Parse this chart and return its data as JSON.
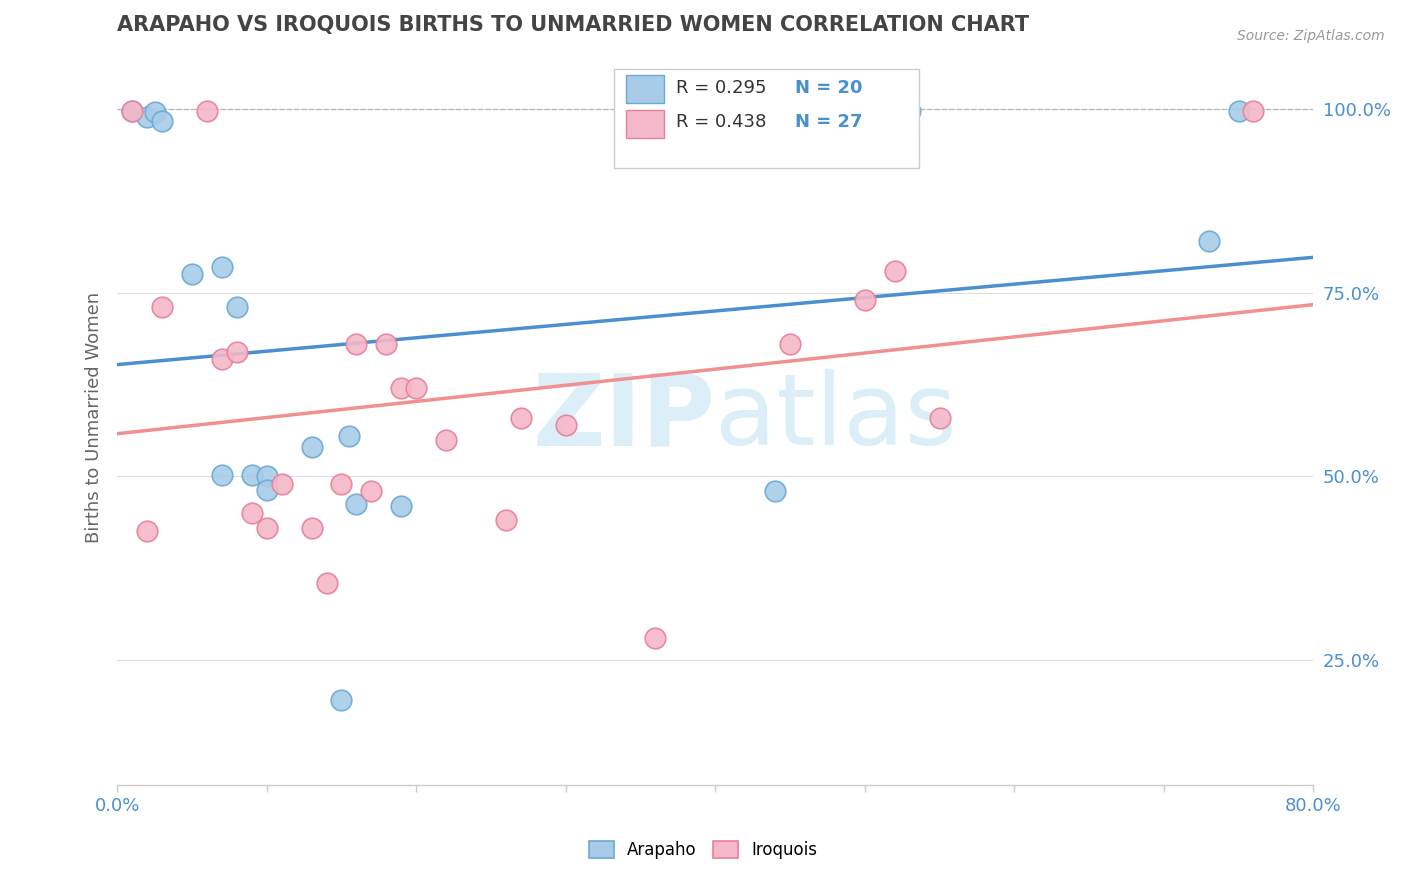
{
  "title": "ARAPAHO VS IROQUOIS BIRTHS TO UNMARRIED WOMEN CORRELATION CHART",
  "source_text": "Source: ZipAtlas.com",
  "ylabel": "Births to Unmarried Women",
  "xlim": [
    0.0,
    0.8
  ],
  "ylim": [
    0.08,
    1.08
  ],
  "xticks": [
    0.0,
    0.1,
    0.2,
    0.3,
    0.4,
    0.5,
    0.6,
    0.7,
    0.8
  ],
  "xticklabels": [
    "0.0%",
    "",
    "",
    "",
    "",
    "",
    "",
    "",
    "80.0%"
  ],
  "ytick_positions": [
    0.25,
    0.5,
    0.75,
    1.0
  ],
  "ytick_labels": [
    "25.0%",
    "50.0%",
    "75.0%",
    "100.0%"
  ],
  "arapaho_color": "#a8cce8",
  "arapaho_edge": "#6aaad4",
  "iroquois_color": "#f5b8c8",
  "iroquois_edge": "#e88099",
  "arapaho_line_color": "#4a90d0",
  "iroquois_line_color": "#f09090",
  "legend_R_arapaho": "R = 0.295",
  "legend_N_arapaho": "N = 20",
  "legend_R_iroquois": "R = 0.438",
  "legend_N_iroquois": "N = 27",
  "arapaho_x": [
    0.01,
    0.02,
    0.025,
    0.03,
    0.05,
    0.07,
    0.07,
    0.08,
    0.09,
    0.1,
    0.1,
    0.13,
    0.15,
    0.155,
    0.16,
    0.19,
    0.44,
    0.53,
    0.73,
    0.75
  ],
  "arapaho_y": [
    0.998,
    0.99,
    0.996,
    0.984,
    0.775,
    0.785,
    0.502,
    0.73,
    0.502,
    0.5,
    0.482,
    0.54,
    0.195,
    0.555,
    0.462,
    0.46,
    0.48,
    0.998,
    0.82,
    0.998
  ],
  "iroquois_x": [
    0.01,
    0.02,
    0.03,
    0.06,
    0.07,
    0.08,
    0.09,
    0.1,
    0.11,
    0.13,
    0.14,
    0.15,
    0.16,
    0.17,
    0.18,
    0.19,
    0.2,
    0.22,
    0.26,
    0.27,
    0.3,
    0.36,
    0.45,
    0.5,
    0.52,
    0.55,
    0.76
  ],
  "iroquois_y": [
    0.998,
    0.425,
    0.73,
    0.998,
    0.66,
    0.67,
    0.45,
    0.43,
    0.49,
    0.43,
    0.355,
    0.49,
    0.68,
    0.48,
    0.68,
    0.62,
    0.62,
    0.55,
    0.44,
    0.58,
    0.57,
    0.28,
    0.68,
    0.74,
    0.78,
    0.58,
    0.998
  ],
  "background_color": "#ffffff",
  "grid_color": "#dddddd",
  "title_color": "#444444",
  "axis_label_color": "#4a90d0",
  "watermark_color": "#dceef8"
}
